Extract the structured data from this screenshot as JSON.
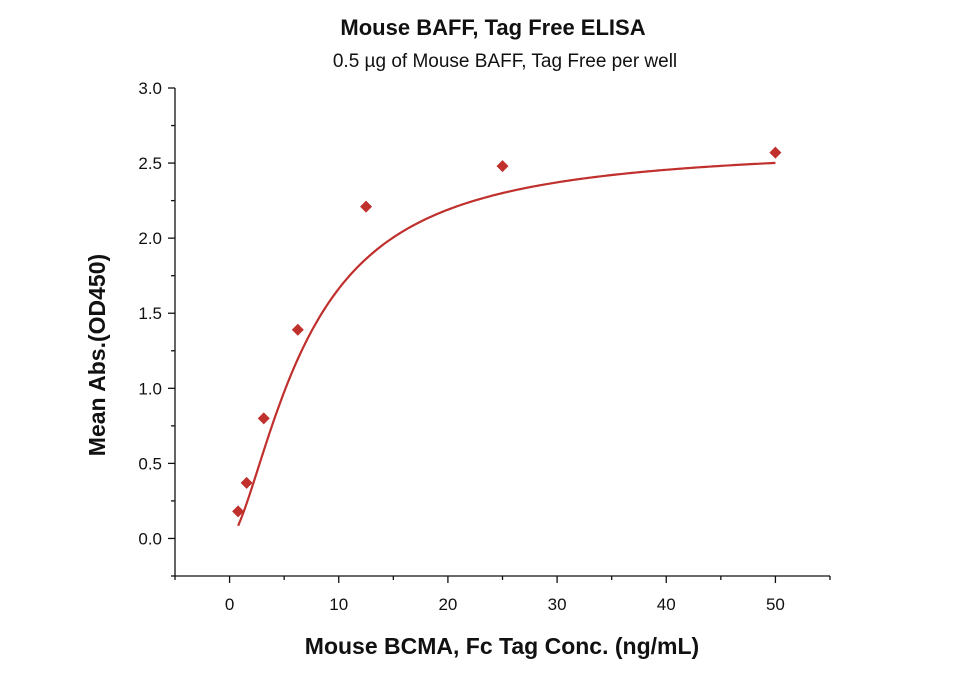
{
  "chart_data": {
    "type": "scatter",
    "title": "Mouse BAFF, Tag Free ELISA",
    "subtitle": "0.5 µg of Mouse BAFF, Tag Free per well",
    "xlabel": "Mouse BCMA, Fc Tag Conc. (ng/mL)",
    "ylabel": "Mean Abs.(OD450)",
    "xlim": [
      -5,
      55
    ],
    "ylim": [
      -0.25,
      3.0
    ],
    "x_ticks": [
      0,
      10,
      20,
      30,
      40,
      50
    ],
    "y_ticks": [
      0.0,
      0.5,
      1.0,
      1.5,
      2.0,
      2.5,
      3.0
    ],
    "x_tick_labels": [
      "0",
      "10",
      "20",
      "30",
      "40",
      "50"
    ],
    "y_tick_labels": [
      "0.0",
      "0.5",
      "1.0",
      "1.5",
      "2.0",
      "2.5",
      "3.0"
    ],
    "grid": false,
    "color": "#c0302d",
    "series": [
      {
        "x": [
          0.78,
          1.56,
          3.13,
          6.25,
          12.5,
          25,
          50
        ],
        "y": [
          0.18,
          0.37,
          0.8,
          1.39,
          2.21,
          2.48,
          2.57
        ],
        "marker": "diamond",
        "fit": "four-parameter logistic curve"
      }
    ]
  }
}
